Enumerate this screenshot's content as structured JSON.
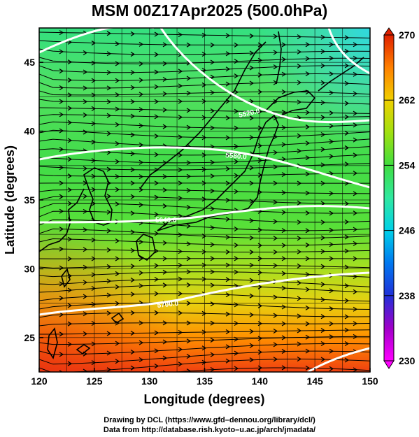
{
  "title": "MSM 00Z17Apr2025 (500.0hPa)",
  "axes": {
    "xlabel": "Longitude (degrees)",
    "ylabel": "Latitude  (degrees)",
    "xlim": [
      120,
      150
    ],
    "ylim": [
      22.5,
      47.5
    ],
    "xticks": [
      "120",
      "125",
      "130",
      "135",
      "140",
      "145",
      "150"
    ],
    "yticks": [
      "25",
      "30",
      "35",
      "40",
      "45"
    ],
    "grid": true
  },
  "colorbar": {
    "range": [
      230,
      270
    ],
    "tick_labels": [
      "270",
      "262",
      "254",
      "246",
      "238",
      "230"
    ],
    "colormap": [
      "#ff00ff",
      "#a000c8",
      "#2030d8",
      "#0078f0",
      "#00d0e8",
      "#30e8a0",
      "#40dd40",
      "#a0e010",
      "#f0d000",
      "#ff8000",
      "#e02000"
    ]
  },
  "contours": {
    "values": [
      "5760.0",
      "5700.0",
      "5640.0",
      "5580.0",
      "5520.0"
    ]
  },
  "credits": {
    "line1": "Drawing by DCL (https://www.gfd–dennou.org/library/dcl/)",
    "line2": "Data from http://database.rish.kyoto–u.ac.jp/arch/jmadata/"
  },
  "map_meaning": {
    "shading": "temperature (K)",
    "lines": "geopotential height contours",
    "arrows": "wind streamlines, westerly flow"
  }
}
